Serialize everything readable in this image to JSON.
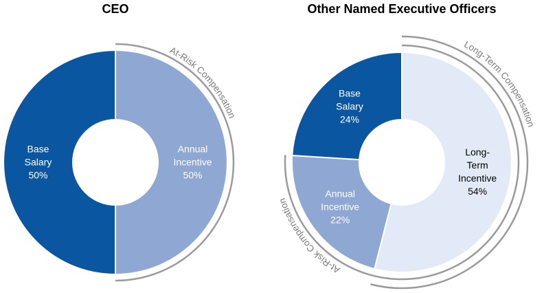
{
  "chart_data": [
    {
      "type": "pie",
      "title": "CEO",
      "categories": [
        "Annual Incentive",
        "Base Salary"
      ],
      "values": [
        50,
        50
      ],
      "value_labels": [
        "50%",
        "50%"
      ],
      "colors": [
        "#8ea7d3",
        "#0a56a0"
      ],
      "label_colors": [
        "#ffffff",
        "#ffffff"
      ],
      "annotations": [
        "At-Risk Compensation"
      ]
    },
    {
      "type": "pie",
      "title": "Other Named Executive Officers",
      "categories": [
        "Long-Term Incentive",
        "Annual Incentive",
        "Base Salary"
      ],
      "values": [
        54,
        22,
        24
      ],
      "value_labels": [
        "54%",
        "22%",
        "24%"
      ],
      "colors": [
        "#e3eaf7",
        "#8ea7d3",
        "#0a56a0"
      ],
      "label_colors": [
        "#000000",
        "#ffffff",
        "#ffffff"
      ],
      "annotations": [
        "Long-Term Compensation",
        "At-Risk Compensation"
      ]
    }
  ]
}
